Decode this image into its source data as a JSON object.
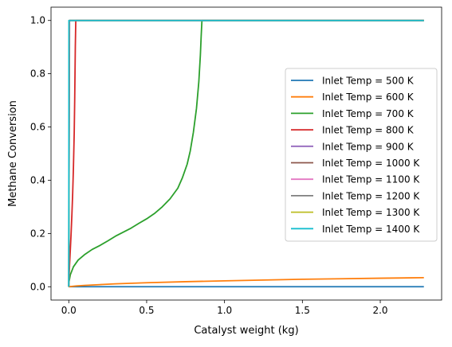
{
  "chart_data": {
    "type": "line",
    "title": "",
    "xlabel": "Catalyst weight (kg)",
    "ylabel": "Methane Conversion",
    "xlim": [
      -0.114,
      2.394
    ],
    "ylim": [
      -0.05,
      1.05
    ],
    "xticks": [
      0.0,
      0.5,
      1.0,
      1.5,
      2.0
    ],
    "xtick_labels": [
      "0.0",
      "0.5",
      "1.0",
      "1.5",
      "2.0"
    ],
    "yticks": [
      0.0,
      0.2,
      0.4,
      0.6,
      0.8,
      1.0
    ],
    "ytick_labels": [
      "0.0",
      "0.2",
      "0.4",
      "0.6",
      "0.8",
      "1.0"
    ],
    "grid": false,
    "legend_position": "center-right",
    "series": [
      {
        "name": "Inlet Temp = 500 K",
        "color": "#1f77b4",
        "x": [
          0,
          2.28
        ],
        "y": [
          0,
          0
        ]
      },
      {
        "name": "Inlet Temp = 600 K",
        "color": "#ff7f0e",
        "x": [
          0,
          0.05,
          0.1,
          0.2,
          0.3,
          0.5,
          0.75,
          1.0,
          1.25,
          1.5,
          1.75,
          2.0,
          2.28
        ],
        "y": [
          0,
          0.003,
          0.005,
          0.008,
          0.011,
          0.015,
          0.019,
          0.022,
          0.025,
          0.028,
          0.03,
          0.032,
          0.034
        ]
      },
      {
        "name": "Inlet Temp = 700 K",
        "color": "#2ca02c",
        "x": [
          0,
          0.002,
          0.01,
          0.03,
          0.06,
          0.1,
          0.15,
          0.2,
          0.25,
          0.3,
          0.35,
          0.4,
          0.45,
          0.5,
          0.55,
          0.6,
          0.65,
          0.7,
          0.73,
          0.76,
          0.78,
          0.8,
          0.82,
          0.835,
          0.845,
          0.85,
          0.855,
          2.28
        ],
        "y": [
          0,
          0.02,
          0.045,
          0.075,
          0.1,
          0.12,
          0.14,
          0.155,
          0.172,
          0.19,
          0.205,
          0.22,
          0.238,
          0.255,
          0.275,
          0.3,
          0.33,
          0.37,
          0.41,
          0.46,
          0.51,
          0.58,
          0.67,
          0.77,
          0.87,
          0.94,
          1.0,
          1.0
        ]
      },
      {
        "name": "Inlet Temp = 800 K",
        "color": "#d62728",
        "x": [
          0,
          0.005,
          0.01,
          0.015,
          0.02,
          0.025,
          0.03,
          0.035,
          0.038,
          0.04,
          0.042,
          0.045,
          2.28
        ],
        "y": [
          0,
          0.08,
          0.14,
          0.2,
          0.27,
          0.35,
          0.45,
          0.58,
          0.7,
          0.8,
          0.9,
          1.0,
          1.0
        ]
      },
      {
        "name": "Inlet Temp = 900 K",
        "color": "#9467bd",
        "x": [
          0,
          0.005,
          2.28
        ],
        "y": [
          0,
          1.0,
          1.0
        ]
      },
      {
        "name": "Inlet Temp = 1000 K",
        "color": "#8c564b",
        "x": [
          0,
          0.004,
          2.28
        ],
        "y": [
          0,
          1.0,
          1.0
        ]
      },
      {
        "name": "Inlet Temp = 1100 K",
        "color": "#e377c2",
        "x": [
          0,
          0.003,
          2.28
        ],
        "y": [
          0,
          1.0,
          1.0
        ]
      },
      {
        "name": "Inlet Temp = 1200 K",
        "color": "#7f7f7f",
        "x": [
          0,
          0.002,
          2.28
        ],
        "y": [
          0,
          1.0,
          1.0
        ]
      },
      {
        "name": "Inlet Temp = 1300 K",
        "color": "#bcbd22",
        "x": [
          0,
          0.0015,
          2.28
        ],
        "y": [
          0,
          1.0,
          1.0
        ]
      },
      {
        "name": "Inlet Temp = 1400 K",
        "color": "#17becf",
        "x": [
          0,
          0.001,
          2.28
        ],
        "y": [
          0,
          1.0,
          1.0
        ]
      }
    ]
  }
}
